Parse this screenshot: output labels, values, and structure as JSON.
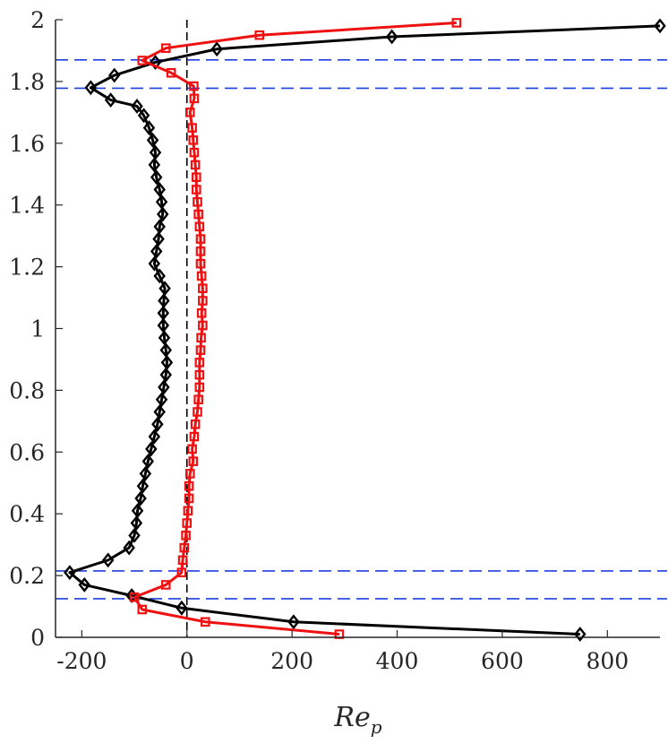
{
  "chart_data": {
    "type": "line",
    "xlabel_base": "Re",
    "xlabel_sub": "p",
    "ylabel": "",
    "title": "",
    "xlim": [
      -250,
      900
    ],
    "ylim": [
      0,
      2
    ],
    "xticks": [
      -200,
      0,
      200,
      400,
      600,
      800
    ],
    "xtick_labels": [
      "-200",
      "0",
      "200",
      "400",
      "600",
      "800"
    ],
    "yticks": [
      0,
      0.2,
      0.4,
      0.6,
      0.8,
      1,
      1.2,
      1.4,
      1.6,
      1.8,
      2
    ],
    "ytick_labels": [
      "0",
      "0.2",
      "0.4",
      "0.6",
      "0.8",
      "1",
      "1.2",
      "1.4",
      "1.6",
      "1.8",
      "2"
    ],
    "grid": false,
    "legend": "none",
    "reference_lines": {
      "vertical_x": 0,
      "vertical_color": "#000000",
      "horizontal_y": [
        0.125,
        0.215,
        1.778,
        1.87
      ],
      "horizontal_color": "#1f3fe0"
    },
    "series": [
      {
        "color": "#000000",
        "marker": "diamond",
        "points": [
          [
            748,
            0.01
          ],
          [
            203,
            0.05
          ],
          [
            -10,
            0.095
          ],
          [
            -105,
            0.135
          ],
          [
            -195,
            0.17
          ],
          [
            -223,
            0.21
          ],
          [
            -150,
            0.25
          ],
          [
            -110,
            0.29
          ],
          [
            -100,
            0.33
          ],
          [
            -96,
            0.37
          ],
          [
            -94,
            0.41
          ],
          [
            -88,
            0.45
          ],
          [
            -84,
            0.49
          ],
          [
            -79,
            0.53
          ],
          [
            -74,
            0.57
          ],
          [
            -68,
            0.61
          ],
          [
            -62,
            0.65
          ],
          [
            -56,
            0.69
          ],
          [
            -52,
            0.73
          ],
          [
            -48,
            0.77
          ],
          [
            -44,
            0.81
          ],
          [
            -40,
            0.85
          ],
          [
            -38,
            0.89
          ],
          [
            -40,
            0.93
          ],
          [
            -43,
            0.97
          ],
          [
            -45,
            1.01
          ],
          [
            -45,
            1.05
          ],
          [
            -44,
            1.09
          ],
          [
            -42,
            1.13
          ],
          [
            -52,
            1.17
          ],
          [
            -62,
            1.21
          ],
          [
            -58,
            1.25
          ],
          [
            -54,
            1.29
          ],
          [
            -52,
            1.33
          ],
          [
            -46,
            1.37
          ],
          [
            -48,
            1.41
          ],
          [
            -52,
            1.45
          ],
          [
            -58,
            1.49
          ],
          [
            -62,
            1.53
          ],
          [
            -60,
            1.57
          ],
          [
            -65,
            1.61
          ],
          [
            -72,
            1.65
          ],
          [
            -82,
            1.69
          ],
          [
            -95,
            1.72
          ],
          [
            -145,
            1.74
          ],
          [
            -183,
            1.78
          ],
          [
            -138,
            1.82
          ],
          [
            -60,
            1.862
          ],
          [
            57,
            1.905
          ],
          [
            390,
            1.945
          ],
          [
            900,
            1.98
          ]
        ]
      },
      {
        "color": "#ee1111",
        "marker": "square",
        "points": [
          [
            290,
            0.01
          ],
          [
            35,
            0.05
          ],
          [
            -85,
            0.09
          ],
          [
            -100,
            0.13
          ],
          [
            -40,
            0.17
          ],
          [
            -10,
            0.21
          ],
          [
            -8,
            0.25
          ],
          [
            -5,
            0.29
          ],
          [
            -2,
            0.33
          ],
          [
            0,
            0.37
          ],
          [
            2,
            0.41
          ],
          [
            4,
            0.45
          ],
          [
            4,
            0.49
          ],
          [
            6,
            0.53
          ],
          [
            12,
            0.57
          ],
          [
            10,
            0.61
          ],
          [
            14,
            0.65
          ],
          [
            16,
            0.69
          ],
          [
            20,
            0.73
          ],
          [
            22,
            0.77
          ],
          [
            24,
            0.81
          ],
          [
            24,
            0.85
          ],
          [
            24,
            0.89
          ],
          [
            26,
            0.93
          ],
          [
            27,
            0.97
          ],
          [
            30,
            1.01
          ],
          [
            28,
            1.05
          ],
          [
            30,
            1.09
          ],
          [
            30,
            1.13
          ],
          [
            28,
            1.17
          ],
          [
            26,
            1.21
          ],
          [
            26,
            1.25
          ],
          [
            26,
            1.29
          ],
          [
            24,
            1.33
          ],
          [
            22,
            1.37
          ],
          [
            20,
            1.41
          ],
          [
            18,
            1.45
          ],
          [
            18,
            1.49
          ],
          [
            16,
            1.53
          ],
          [
            14,
            1.57
          ],
          [
            12,
            1.61
          ],
          [
            10,
            1.65
          ],
          [
            6,
            1.7
          ],
          [
            14,
            1.745
          ],
          [
            13,
            1.785
          ],
          [
            -30,
            1.828
          ],
          [
            -85,
            1.868
          ],
          [
            -40,
            1.908
          ],
          [
            138,
            1.95
          ],
          [
            513,
            1.99
          ]
        ]
      }
    ]
  }
}
